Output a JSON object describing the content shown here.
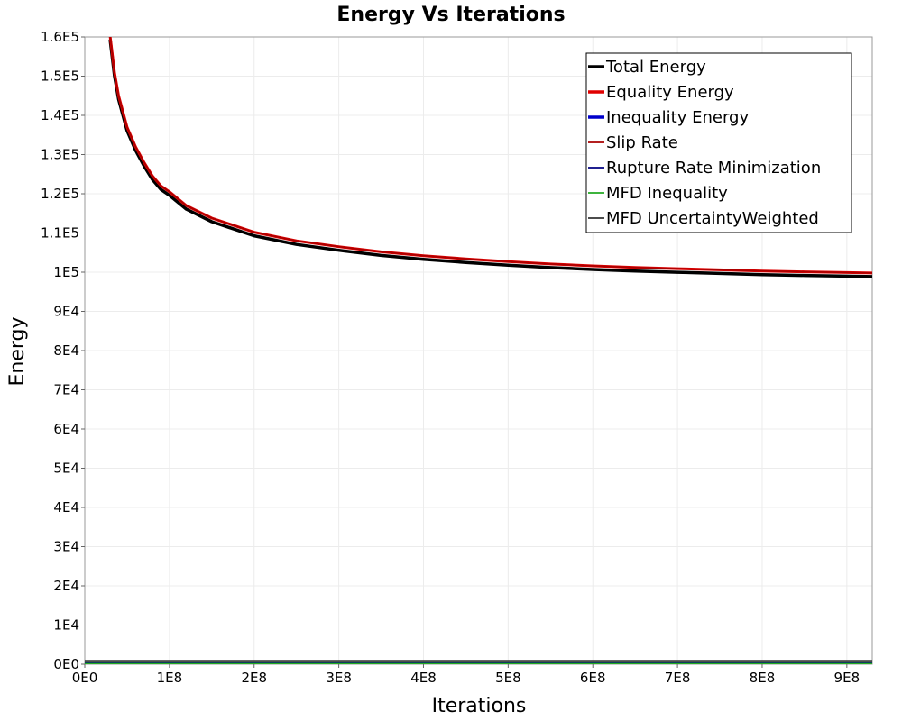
{
  "chart_data": {
    "type": "line",
    "title": "Energy Vs Iterations",
    "xlabel": "Iterations",
    "ylabel": "Energy",
    "xlim": [
      0,
      930000000
    ],
    "ylim": [
      0,
      160000
    ],
    "x_ticks": [
      {
        "value": 0,
        "label": "0E0"
      },
      {
        "value": 100000000,
        "label": "1E8"
      },
      {
        "value": 200000000,
        "label": "2E8"
      },
      {
        "value": 300000000,
        "label": "3E8"
      },
      {
        "value": 400000000,
        "label": "4E8"
      },
      {
        "value": 500000000,
        "label": "5E8"
      },
      {
        "value": 600000000,
        "label": "6E8"
      },
      {
        "value": 700000000,
        "label": "7E8"
      },
      {
        "value": 800000000,
        "label": "8E8"
      },
      {
        "value": 900000000,
        "label": "9E8"
      }
    ],
    "y_ticks": [
      {
        "value": 0,
        "label": "0E0"
      },
      {
        "value": 10000,
        "label": "1E4"
      },
      {
        "value": 20000,
        "label": "2E4"
      },
      {
        "value": 30000,
        "label": "3E4"
      },
      {
        "value": 40000,
        "label": "4E4"
      },
      {
        "value": 50000,
        "label": "5E4"
      },
      {
        "value": 60000,
        "label": "6E4"
      },
      {
        "value": 70000,
        "label": "7E4"
      },
      {
        "value": 80000,
        "label": "8E4"
      },
      {
        "value": 90000,
        "label": "9E4"
      },
      {
        "value": 100000,
        "label": "1E5"
      },
      {
        "value": 110000,
        "label": "1.1E5"
      },
      {
        "value": 120000,
        "label": "1.2E5"
      },
      {
        "value": 130000,
        "label": "1.3E5"
      },
      {
        "value": 140000,
        "label": "1.4E5"
      },
      {
        "value": 150000,
        "label": "1.5E5"
      },
      {
        "value": 160000,
        "label": "1.6E5"
      }
    ],
    "grid": true,
    "legend_position": "top-right",
    "series": [
      {
        "name": "Total Energy",
        "color": "#000000",
        "line": "thick",
        "x": [
          30000000,
          35000000,
          40000000,
          50000000,
          60000000,
          70000000,
          80000000,
          90000000,
          100000000,
          120000000,
          150000000,
          200000000,
          250000000,
          300000000,
          350000000,
          400000000,
          450000000,
          500000000,
          550000000,
          600000000,
          650000000,
          700000000,
          750000000,
          800000000,
          850000000,
          900000000,
          930000000
        ],
        "y": [
          160000,
          151000,
          145000,
          137000,
          132000,
          128000,
          124500,
          122000,
          120500,
          117000,
          113800,
          110200,
          108000,
          106500,
          105200,
          104200,
          103400,
          102700,
          102100,
          101600,
          101200,
          100900,
          100600,
          100300,
          100100,
          99900,
          99800
        ]
      },
      {
        "name": "Equality Energy",
        "color": "#e00000",
        "line": "thick",
        "x": [
          30000000,
          35000000,
          40000000,
          50000000,
          60000000,
          70000000,
          80000000,
          90000000,
          100000000,
          120000000,
          150000000,
          200000000,
          250000000,
          300000000,
          350000000,
          400000000,
          450000000,
          500000000,
          550000000,
          600000000,
          650000000,
          700000000,
          750000000,
          800000000,
          850000000,
          900000000,
          930000000
        ],
        "y": [
          160000,
          151000,
          145000,
          137000,
          132000,
          128000,
          124500,
          122000,
          120500,
          117000,
          113800,
          110200,
          108000,
          106500,
          105200,
          104200,
          103400,
          102700,
          102100,
          101600,
          101200,
          100900,
          100600,
          100300,
          100100,
          99900,
          99800
        ]
      },
      {
        "name": "Inequality Energy",
        "color": "#0000cc",
        "line": "thick",
        "x": [
          0,
          930000000
        ],
        "y": [
          0,
          0
        ]
      },
      {
        "name": "Slip Rate",
        "color": "#aa0000",
        "line": "thin",
        "x": [
          30000000,
          35000000,
          40000000,
          50000000,
          60000000,
          70000000,
          80000000,
          90000000,
          100000000,
          120000000,
          150000000,
          200000000,
          250000000,
          300000000,
          350000000,
          400000000,
          450000000,
          500000000,
          550000000,
          600000000,
          650000000,
          700000000,
          750000000,
          800000000,
          850000000,
          900000000,
          930000000
        ],
        "y": [
          160000,
          151000,
          145000,
          137000,
          132000,
          128000,
          124500,
          122000,
          120500,
          117000,
          113800,
          110200,
          108000,
          106500,
          105200,
          104200,
          103400,
          102700,
          102100,
          101600,
          101200,
          100900,
          100600,
          100300,
          100100,
          99900,
          99800
        ]
      },
      {
        "name": "Rupture Rate Minimization",
        "color": "#000080",
        "line": "thin",
        "x": [
          0,
          930000000
        ],
        "y": [
          500,
          500
        ]
      },
      {
        "name": "MFD Inequality",
        "color": "#22aa22",
        "line": "thin",
        "x": [
          0,
          930000000
        ],
        "y": [
          150,
          150
        ]
      },
      {
        "name": "MFD UncertaintyWeighted",
        "color": "#333333",
        "line": "thin",
        "x": [
          0,
          930000000
        ],
        "y": [
          900,
          900
        ]
      }
    ]
  }
}
